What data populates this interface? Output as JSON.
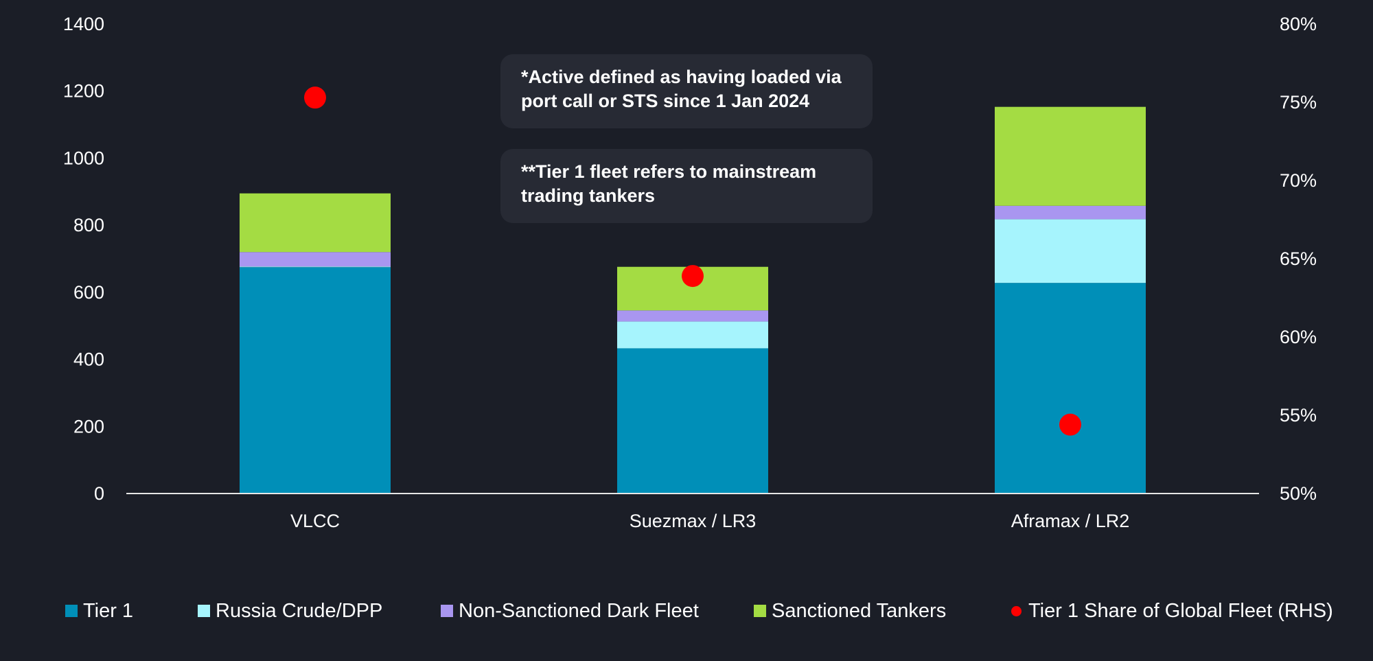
{
  "notes": [
    {
      "text": "*Active defined as having loaded via port call or STS since 1 Jan 2024"
    },
    {
      "text": "**Tier 1 fleet refers to mainstream trading tankers"
    }
  ],
  "legend": [
    {
      "label": "Tier 1",
      "color": "#008fb8",
      "marker": "square"
    },
    {
      "label": "Russia Crude/DPP",
      "color": "#a6f4fd",
      "marker": "square"
    },
    {
      "label": "Non-Sanctioned Dark Fleet",
      "color": "#a996f0",
      "marker": "square"
    },
    {
      "label": "Sanctioned Tankers",
      "color": "#a4dc43",
      "marker": "square"
    },
    {
      "label": "Tier 1 Share of Global Fleet (RHS)",
      "color": "#ff0000",
      "marker": "dot"
    }
  ],
  "chart_data": {
    "type": "bar",
    "stacked": true,
    "categories": [
      "VLCC",
      "Suezmax / LR3",
      "Aframax / LR2"
    ],
    "series": [
      {
        "name": "Tier 1",
        "color": "#008fb8",
        "values": [
          675,
          433,
          628
        ]
      },
      {
        "name": "Russia Crude/DPP",
        "color": "#a6f4fd",
        "values": [
          2,
          80,
          190
        ]
      },
      {
        "name": "Non-Sanctioned Dark Fleet",
        "color": "#a996f0",
        "values": [
          43,
          33,
          40
        ]
      },
      {
        "name": "Sanctioned Tankers",
        "color": "#a4dc43",
        "values": [
          175,
          130,
          295
        ]
      }
    ],
    "rhs_series": {
      "name": "Tier 1 Share of Global Fleet (RHS)",
      "color": "#ff0000",
      "values": [
        0.753,
        0.639,
        0.544
      ]
    },
    "y_ticks": [
      0,
      200,
      400,
      600,
      800,
      1000,
      1200,
      1400
    ],
    "ylim": [
      0,
      1400
    ],
    "y2_ticks": [
      "50%",
      "55%",
      "60%",
      "65%",
      "70%",
      "75%",
      "80%"
    ],
    "y2lim": [
      0.5,
      0.8
    ],
    "grid": false,
    "legend_position": "bottom"
  }
}
